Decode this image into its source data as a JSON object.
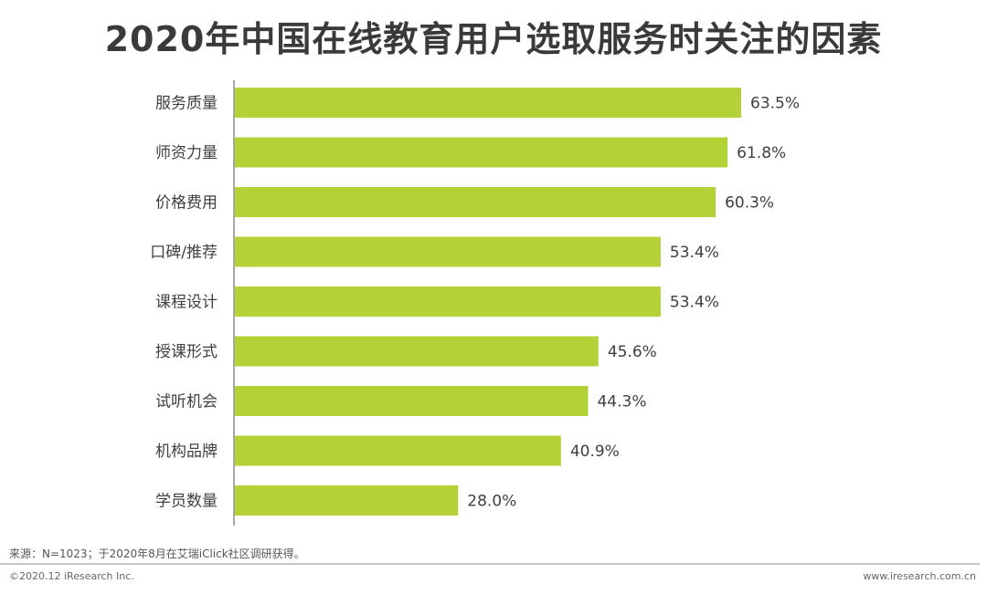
{
  "chart_data": {
    "type": "bar",
    "orientation": "horizontal",
    "title": "2020年中国在线教育用户选取服务时关注的因素",
    "categories": [
      "服务质量",
      "师资力量",
      "价格费用",
      "口碑/推荐",
      "课程设计",
      "授课形式",
      "试听机会",
      "机构品牌",
      "学员数量"
    ],
    "values": [
      63.5,
      61.8,
      60.3,
      53.4,
      53.4,
      45.6,
      44.3,
      40.9,
      28.0
    ],
    "value_labels": [
      "63.5%",
      "61.8%",
      "60.3%",
      "53.4%",
      "53.4%",
      "45.6%",
      "44.3%",
      "40.9%",
      "28.0%"
    ],
    "xlim": [
      0,
      70
    ],
    "bar_color": "#b2d235",
    "grid": false,
    "legend": "none"
  },
  "source_text": "来源：N=1023；于2020年8月在艾瑞iClick社区调研获得。",
  "footer": {
    "copyright": "©2020.12 iResearch Inc.",
    "website": "www.iresearch.com.cn"
  }
}
